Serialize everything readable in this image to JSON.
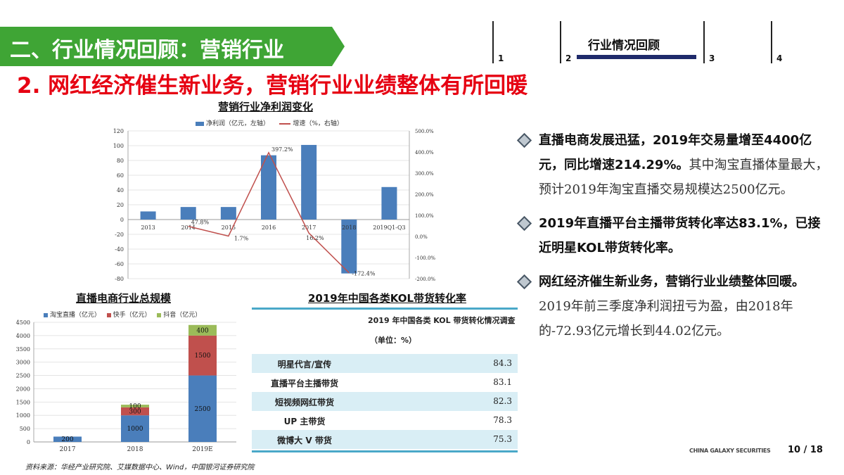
{
  "banner": {
    "title": "二、行业情况回顾：营销行业",
    "color": "#3fa535"
  },
  "nav": [
    {
      "num": "1",
      "label": ""
    },
    {
      "num": "2",
      "label": "行业情况回顾"
    },
    {
      "num": "3",
      "label": ""
    },
    {
      "num": "4",
      "label": ""
    }
  ],
  "headline": "2. 网红经济催生新业务，营销行业业绩整体有所回暖",
  "bullets": [
    {
      "strong": "直播电商发展迅猛，2019年交易量增至4400亿元，同比增速214.29%。",
      "normal": "其中淘宝直播体量最大，预计2019年淘宝直播交易规模达2500亿元。"
    },
    {
      "strong": "2019年直播平台主播带货转化率达83.1%，已接近明星KOL带货转化率。",
      "normal": ""
    },
    {
      "strong": "网红经济催生新业务，营销行业业绩整体回暖。",
      "normal": "2019年前三季度净利润扭亏为盈，由2018年的-72.93亿元增长到44.02亿元。"
    }
  ],
  "table": {
    "title": "2019年中国各类KOL带货转化率",
    "header_line1": "2019 年中国各类 KOL 带货转化情况调查",
    "header_line2": "（单位：%）",
    "rows": [
      {
        "label": "明星代言/宣传",
        "value": "84.3"
      },
      {
        "label": "直播平台主播带货",
        "value": "83.1"
      },
      {
        "label": "短视频网红带货",
        "value": "82.3"
      },
      {
        "label": "UP 主带货",
        "value": "78.3"
      },
      {
        "label": "微博大 V 带货",
        "value": "75.3"
      }
    ]
  },
  "footer": {
    "source": "资料来源：华经产业研究院、艾媒数据中心、Wind，中国银河证券研究院",
    "brand": "CHINA GALAXY SECURITIES",
    "page": "10 / 18"
  },
  "chart_data": [
    {
      "type": "bar",
      "title": "营销行业净利润变化",
      "categories": [
        "2013",
        "2014",
        "2015",
        "2016",
        "2017",
        "2018",
        "2019Q1-Q3"
      ],
      "series": [
        {
          "name": "净利润（亿元，左轴）",
          "type": "bar",
          "axis": "left",
          "color": "#4a7ebb",
          "values": [
            11,
            17,
            17,
            87,
            101,
            -72.93,
            44.02
          ]
        },
        {
          "name": "增速（%，右轴）",
          "type": "line",
          "axis": "right",
          "color": "#c0504d",
          "values": [
            null,
            47.8,
            1.7,
            397.2,
            16.2,
            -172.4,
            null
          ],
          "labels": [
            "",
            "47.8%",
            "1.7%",
            "397.2%",
            "16.2%",
            "-172.4%",
            ""
          ]
        }
      ],
      "yticks_left": [
        120,
        100,
        80,
        60,
        40,
        20,
        0,
        -20,
        -40,
        -60,
        -80
      ],
      "yticks_right": [
        "500.0%",
        "400.0%",
        "300.0%",
        "200.0%",
        "100.0%",
        "0.0%",
        "-100.0%",
        "-200.0%"
      ],
      "ylim_left": [
        -80,
        120
      ],
      "ylim_right": [
        -200,
        500
      ]
    },
    {
      "type": "bar",
      "stacked": true,
      "title": "直播电商行业总规模",
      "categories": [
        "2017",
        "2018",
        "2019E"
      ],
      "series": [
        {
          "name": "淘宝直播（亿元）",
          "color": "#4a7ebb",
          "values": [
            200,
            1000,
            2500
          ]
        },
        {
          "name": "快手（亿元）",
          "color": "#c0504d",
          "values": [
            0,
            300,
            1500
          ]
        },
        {
          "name": "抖音（亿元）",
          "color": "#9bbb59",
          "values": [
            0,
            100,
            400
          ]
        }
      ],
      "yticks": [
        4500,
        4000,
        3500,
        3000,
        2500,
        2000,
        1500,
        1000,
        500,
        0
      ],
      "ylim": [
        0,
        4500
      ]
    }
  ]
}
